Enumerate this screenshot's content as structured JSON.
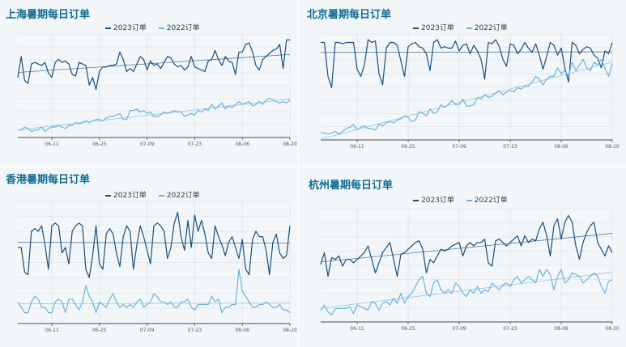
{
  "colors": {
    "y2023": "#1a4f7a",
    "y2022": "#6bb3dc",
    "title": "#0f6b93",
    "grid": "#d4dde3",
    "axis": "#4a4a4a"
  },
  "legend": {
    "y2023": "2023订单",
    "y2022": "2022订单"
  },
  "panels": [
    {
      "title": "上海暑期每日订单"
    },
    {
      "title": "北京暑期每日订单"
    },
    {
      "title": "香港暑期每日订单"
    },
    {
      "title": "杭州暑期每日订单"
    }
  ],
  "chart_data": [
    {
      "type": "line",
      "title": "上海暑期每日订单",
      "x_ticks": [
        "06-11",
        "06-25",
        "07-09",
        "07-23",
        "08-06",
        "08-20"
      ],
      "series": [
        {
          "name": "2023订单",
          "values": [
            80,
            94,
            78,
            76,
            89,
            90,
            89,
            88,
            90,
            83,
            80,
            90,
            92,
            90,
            91,
            89,
            82,
            81,
            90,
            89,
            88,
            75,
            80,
            72,
            84,
            87,
            87,
            88,
            88,
            89,
            97,
            92,
            84,
            86,
            84,
            89,
            94,
            92,
            85,
            91,
            88,
            89,
            86,
            90,
            94,
            93,
            89,
            87,
            88,
            85,
            87,
            94,
            87,
            86,
            85,
            84,
            91,
            92,
            98,
            92,
            88,
            94,
            91,
            90,
            82,
            97,
            97,
            102,
            103,
            97,
            88,
            85,
            92,
            94,
            96,
            98,
            99,
            102,
            86,
            105,
            105
          ]
        },
        {
          "name": "2022订单",
          "values": [
            45,
            45,
            47,
            46,
            44,
            45,
            45,
            47,
            44,
            46,
            47,
            47,
            48,
            47,
            46,
            48,
            48,
            50,
            49,
            50,
            51,
            50,
            51,
            52,
            52,
            51,
            53,
            54,
            54,
            55,
            56,
            52,
            52,
            58,
            58,
            59,
            57,
            58,
            56,
            57,
            54,
            54,
            55,
            57,
            56,
            57,
            58,
            57,
            57,
            54,
            55,
            56,
            55,
            58,
            57,
            59,
            58,
            62,
            59,
            61,
            63,
            59,
            61,
            60,
            62,
            64,
            62,
            63,
            64,
            61,
            62,
            64,
            62,
            65,
            66,
            65,
            64,
            63,
            64,
            63,
            65
          ]
        }
      ]
    },
    {
      "type": "line",
      "title": "北京暑期每日订单",
      "x_ticks": [
        "06-11",
        "06-25",
        "07-09",
        "07-23",
        "08-06",
        "08-20"
      ],
      "series": [
        {
          "name": "2023订单",
          "values": [
            104,
            104,
            80,
            72,
            104,
            104,
            103,
            104,
            104,
            104,
            85,
            80,
            88,
            106,
            104,
            105,
            82,
            74,
            100,
            104,
            104,
            102,
            91,
            80,
            101,
            103,
            104,
            101,
            100,
            96,
            84,
            104,
            106,
            100,
            101,
            100,
            100,
            105,
            98,
            102,
            103,
            96,
            102,
            98,
            92,
            78,
            104,
            103,
            106,
            101,
            92,
            87,
            103,
            102,
            96,
            99,
            104,
            100,
            97,
            103,
            95,
            85,
            94,
            104,
            102,
            95,
            100,
            86,
            76,
            104,
            102,
            96,
            99,
            101,
            100,
            95,
            93,
            86,
            98,
            96,
            104
          ]
        },
        {
          "name": "2022订单",
          "values": [
            40,
            40,
            39,
            40,
            41,
            39,
            41,
            43,
            44,
            46,
            42,
            44,
            45,
            43,
            43,
            42,
            46,
            45,
            47,
            48,
            47,
            49,
            50,
            52,
            51,
            48,
            49,
            55,
            54,
            52,
            57,
            54,
            55,
            60,
            58,
            60,
            63,
            60,
            60,
            64,
            59,
            59,
            60,
            65,
            64,
            67,
            65,
            66,
            68,
            70,
            67,
            69,
            70,
            69,
            72,
            71,
            73,
            73,
            76,
            80,
            78,
            74,
            78,
            80,
            80,
            86,
            82,
            84,
            80,
            90,
            84,
            88,
            92,
            86,
            84,
            90,
            88,
            92,
            86,
            80,
            89
          ]
        }
      ]
    },
    {
      "type": "line",
      "title": "香港暑期每日订单",
      "x_ticks": [
        "06-11",
        "06-25",
        "07-09",
        "07-23",
        "08-06",
        "08-20"
      ],
      "series": [
        {
          "name": "2023订单",
          "values": [
            90,
            90,
            81,
            80,
            96,
            97,
            96,
            98,
            91,
            82,
            98,
            99,
            98,
            88,
            90,
            84,
            96,
            98,
            99,
            98,
            82,
            79,
            87,
            98,
            84,
            82,
            95,
            97,
            95,
            88,
            83,
            94,
            98,
            96,
            82,
            91,
            98,
            94,
            89,
            84,
            98,
            99,
            98,
            96,
            86,
            90,
            99,
            103,
            94,
            89,
            100,
            90,
            102,
            96,
            100,
            95,
            88,
            86,
            98,
            94,
            91,
            87,
            92,
            94,
            90,
            86,
            93,
            82,
            80,
            93,
            96,
            94,
            94,
            89,
            80,
            92,
            95,
            88,
            86,
            87,
            98
          ]
        },
        {
          "name": "2022订单",
          "values": [
            70,
            68,
            66,
            66,
            70,
            72,
            71,
            68,
            68,
            66,
            66,
            70,
            71,
            70,
            66,
            71,
            71,
            69,
            67,
            70,
            76,
            72,
            70,
            66,
            70,
            69,
            68,
            71,
            73,
            70,
            68,
            69,
            68,
            69,
            68,
            70,
            71,
            68,
            69,
            70,
            73,
            72,
            70,
            70,
            69,
            70,
            68,
            68,
            70,
            70,
            71,
            68,
            67,
            69,
            69,
            69,
            69,
            72,
            70,
            71,
            66,
            68,
            68,
            69,
            69,
            82,
            74,
            72,
            70,
            68,
            68,
            69,
            69,
            70,
            69,
            68,
            68,
            69,
            67,
            67,
            66
          ]
        }
      ]
    },
    {
      "type": "line",
      "title": "杭州暑期每日订单",
      "x_ticks": [
        "06-11",
        "06-25",
        "07-09",
        "07-23",
        "08-06",
        "08-20"
      ],
      "series": [
        {
          "name": "2023订单",
          "values": [
            85,
            92,
            78,
            89,
            88,
            90,
            84,
            88,
            88,
            86,
            88,
            90,
            92,
            96,
            88,
            80,
            86,
            92,
            95,
            98,
            88,
            78,
            91,
            92,
            94,
            96,
            98,
            99,
            94,
            80,
            88,
            86,
            90,
            94,
            93,
            94,
            96,
            97,
            98,
            90,
            96,
            98,
            96,
            98,
            98,
            100,
            86,
            84,
            99,
            100,
            98,
            96,
            98,
            100,
            102,
            96,
            102,
            98,
            100,
            99,
            106,
            110,
            102,
            90,
            108,
            112,
            100,
            110,
            114,
            110,
            96,
            88,
            98,
            104,
            108,
            110,
            98,
            94,
            90,
            96,
            92
          ]
        },
        {
          "name": "2022订单",
          "values": [
            58,
            61,
            57,
            55,
            59,
            59,
            59,
            59,
            60,
            56,
            61,
            60,
            59,
            58,
            63,
            62,
            58,
            62,
            63,
            61,
            65,
            62,
            68,
            62,
            66,
            68,
            72,
            76,
            78,
            68,
            66,
            74,
            76,
            70,
            68,
            70,
            68,
            74,
            72,
            68,
            66,
            70,
            68,
            72,
            68,
            70,
            69,
            74,
            72,
            70,
            73,
            74,
            72,
            76,
            78,
            74,
            76,
            78,
            76,
            74,
            82,
            78,
            82,
            79,
            70,
            78,
            82,
            74,
            76,
            80,
            79,
            78,
            74,
            76,
            78,
            80,
            78,
            72,
            68,
            75,
            76
          ]
        }
      ]
    }
  ]
}
